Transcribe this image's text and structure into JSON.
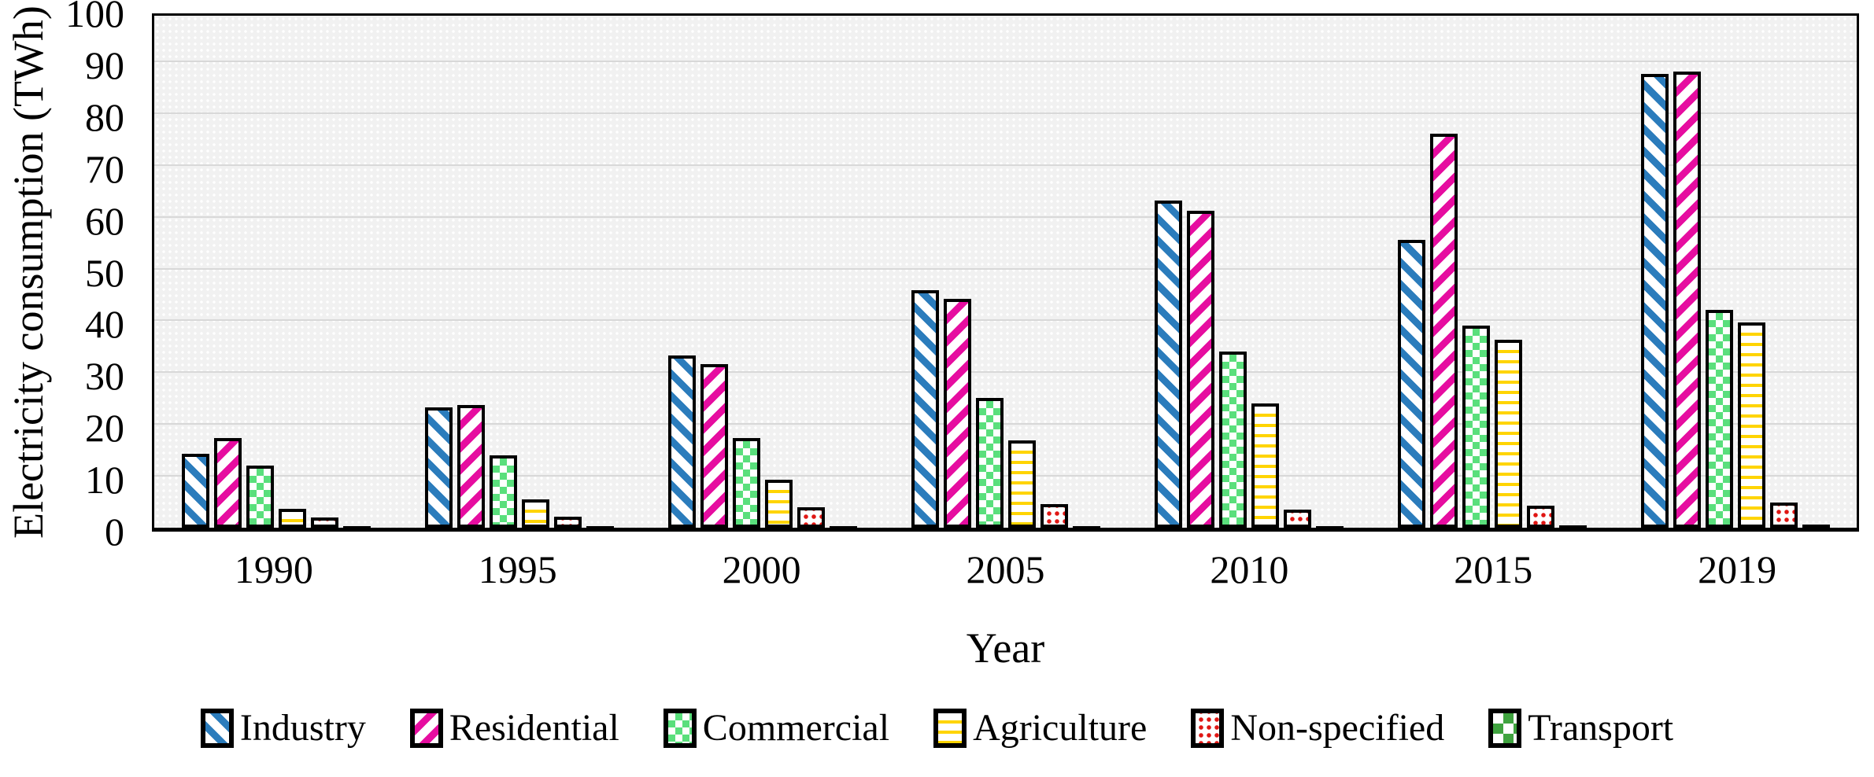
{
  "chart_data": {
    "type": "bar",
    "title": "",
    "xlabel": "Year",
    "ylabel": "Electricity consumption (TWh)",
    "ylim": [
      0,
      100
    ],
    "yticks": [
      0,
      10,
      20,
      30,
      40,
      50,
      60,
      70,
      80,
      90,
      100
    ],
    "grid": "horizontal",
    "gridline_color": "#d8d8d8",
    "plot_background": "#f1f1f1",
    "legend_position": "bottom",
    "categories": [
      "1990",
      "1995",
      "2000",
      "2005",
      "2010",
      "2015",
      "2019"
    ],
    "series": [
      {
        "name": "Industry",
        "color": "#2b7cbc",
        "pattern": "diag-down",
        "values": [
          14.2,
          23.2,
          33.2,
          45.8,
          63.2,
          55.5,
          87.6
        ]
      },
      {
        "name": "Residential",
        "color": "#e60da0",
        "pattern": "diag-up",
        "values": [
          17.3,
          23.6,
          31.5,
          44.2,
          61.2,
          76.0,
          88.0
        ]
      },
      {
        "name": "Commercial",
        "color": "#5adf7c",
        "pattern": "checker",
        "values": [
          12.0,
          14.0,
          17.3,
          25.0,
          34.0,
          39.0,
          42.0
        ]
      },
      {
        "name": "Agriculture",
        "color": "#ffd400",
        "pattern": "hlines",
        "values": [
          3.7,
          5.4,
          9.2,
          16.8,
          24.0,
          36.2,
          39.6
        ]
      },
      {
        "name": "Non-specified",
        "color": "#e01714",
        "pattern": "dots",
        "values": [
          2.0,
          2.2,
          3.9,
          4.6,
          3.5,
          4.2,
          4.9
        ]
      },
      {
        "name": "Transport",
        "color": "#3fa33f",
        "pattern": "checker-lg",
        "values": [
          0.1,
          0.1,
          0.2,
          0.3,
          0.3,
          0.5,
          0.6
        ]
      }
    ]
  }
}
